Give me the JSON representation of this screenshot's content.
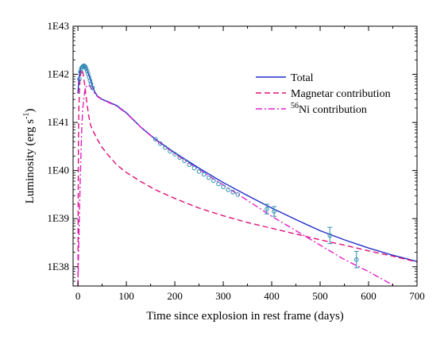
{
  "chart_data": {
    "type": "line",
    "title": "",
    "xlabel": "Time since explosion in rest frame (days)",
    "ylabel": "Luminosity (erg s",
    "ylabel_sup": "-1",
    "ylabel_tail": ")",
    "xlim": [
      -10,
      700
    ],
    "ylim_log10": [
      37.6,
      43
    ],
    "log_y": true,
    "x_ticks": [
      0,
      100,
      200,
      300,
      400,
      500,
      600,
      700
    ],
    "x_tick_labels": [
      "0",
      "100",
      "200",
      "300",
      "400",
      "500",
      "600",
      "700"
    ],
    "y_ticks_log10": [
      38,
      39,
      40,
      41,
      42,
      43
    ],
    "y_tick_labels": [
      "1E38",
      "1E39",
      "1E40",
      "1E41",
      "1E42",
      "1E43"
    ],
    "legend": {
      "position": "top-right",
      "entries": [
        {
          "label": "Total",
          "sup": "",
          "color": "#1f2fc8",
          "dash": "solid"
        },
        {
          "label": "Magnetar contribution",
          "sup": "",
          "color": "#e0107a",
          "dash": "dashed"
        },
        {
          "label": "Ni contribution",
          "sup": "56",
          "color": "#e020c8",
          "dash": "dashdot"
        }
      ]
    },
    "series": [
      {
        "name": "Total",
        "color": "#1f2fc8",
        "dash": "solid",
        "x": [
          0,
          2,
          4,
          6,
          8,
          10,
          12,
          15,
          18,
          22,
          26,
          30,
          35,
          40,
          50,
          60,
          80,
          100,
          130,
          160,
          200,
          250,
          300,
          350,
          400,
          450,
          500,
          550,
          600,
          650,
          700
        ],
        "log_y": [
          41.6,
          41.9,
          42.06,
          42.14,
          42.18,
          42.2,
          42.2,
          42.17,
          42.1,
          42.0,
          41.88,
          41.75,
          41.63,
          41.55,
          41.48,
          41.44,
          41.35,
          41.2,
          40.9,
          40.65,
          40.37,
          40.05,
          39.75,
          39.48,
          39.22,
          38.98,
          38.75,
          38.56,
          38.39,
          38.24,
          38.11
        ]
      },
      {
        "name": "Magnetar contribution",
        "color": "#e0107a",
        "dash": "dashed",
        "x": [
          0,
          1,
          2,
          4,
          6,
          8,
          10,
          12,
          15,
          18,
          22,
          26,
          30,
          35,
          40,
          50,
          60,
          80,
          100,
          130,
          160,
          200,
          250,
          300,
          350,
          400,
          450,
          500,
          550,
          600,
          650,
          700
        ],
        "log_y": [
          37.6,
          40.5,
          41.3,
          41.85,
          42.05,
          42.1,
          42.05,
          41.93,
          41.7,
          41.45,
          41.15,
          40.95,
          40.85,
          40.75,
          40.65,
          40.48,
          40.35,
          40.12,
          39.96,
          39.77,
          39.6,
          39.42,
          39.22,
          39.06,
          38.92,
          38.8,
          38.68,
          38.56,
          38.45,
          38.33,
          38.22,
          38.1
        ]
      },
      {
        "name": "Ni contribution",
        "color": "#e020c8",
        "dash": "dashdot",
        "x": [
          0,
          2,
          5,
          8,
          10,
          15,
          20,
          25,
          30,
          35,
          40,
          50,
          60,
          80,
          100,
          130,
          160,
          200,
          250,
          300,
          350,
          400,
          450,
          500,
          550,
          600,
          650
        ],
        "log_y": [
          37.6,
          38.6,
          39.9,
          40.9,
          41.3,
          41.72,
          41.78,
          41.75,
          41.68,
          41.6,
          41.54,
          41.47,
          41.43,
          41.34,
          41.19,
          40.9,
          40.64,
          40.35,
          40.02,
          39.7,
          39.38,
          39.05,
          38.75,
          38.45,
          38.15,
          37.9,
          37.62
        ]
      }
    ],
    "observations": {
      "color": "#2e8fb0",
      "x": [
        3,
        5,
        7,
        9,
        11,
        13,
        15,
        17,
        19,
        21,
        23,
        25,
        27,
        30,
        160,
        170,
        180,
        190,
        200,
        210,
        220,
        230,
        240,
        250,
        260,
        270,
        280,
        290,
        300,
        310,
        320,
        330
      ],
      "log_y": [
        41.9,
        42.05,
        42.12,
        42.15,
        42.17,
        42.18,
        42.16,
        42.12,
        42.07,
        42.01,
        41.94,
        41.87,
        41.8,
        41.72,
        40.65,
        40.56,
        40.48,
        40.4,
        40.34,
        40.27,
        40.2,
        40.12,
        40.05,
        39.98,
        39.92,
        39.85,
        39.79,
        39.72,
        39.66,
        39.6,
        39.55,
        39.5
      ]
    },
    "error_points": {
      "color": "#2e8fb0",
      "x": [
        390,
        405,
        520,
        575
      ],
      "log_y": [
        39.2,
        39.15,
        38.65,
        38.15
      ],
      "log_err": [
        0.1,
        0.1,
        0.17,
        0.17
      ]
    }
  }
}
